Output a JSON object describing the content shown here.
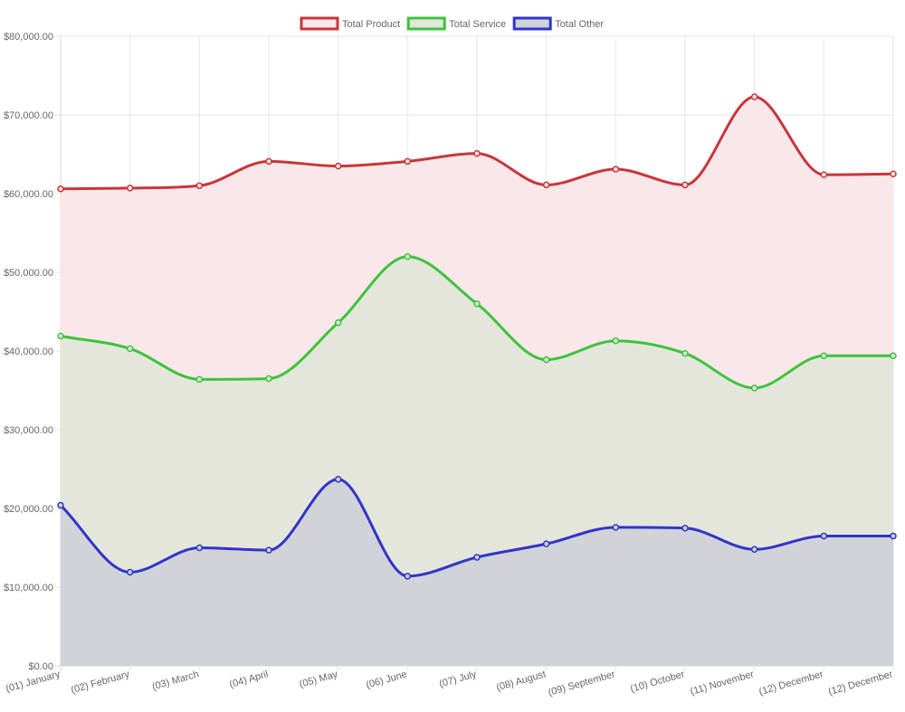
{
  "chart_data": {
    "type": "area",
    "categories": [
      "(01) January",
      "(02) February",
      "(03) March",
      "(04) April",
      "(05) May",
      "(06) June",
      "(07) July",
      "(08) August",
      "(09) September",
      "(10) October",
      "(11) November",
      "(12) December",
      "(12) December"
    ],
    "series": [
      {
        "name": "Total Product",
        "color": "#c8363a",
        "fill": "#f9e7e9",
        "values": [
          60600,
          60700,
          61000,
          64100,
          63500,
          64100,
          65100,
          61100,
          63100,
          61100,
          72300,
          62400,
          62500
        ]
      },
      {
        "name": "Total Service",
        "color": "#3bc43b",
        "fill": "#e5e6db",
        "values": [
          41900,
          40300,
          36400,
          36500,
          43600,
          52000,
          46000,
          38900,
          41300,
          39700,
          35300,
          39400,
          39400
        ]
      },
      {
        "name": "Total Other",
        "color": "#2f35c8",
        "fill": "#d2d3d8",
        "values": [
          20400,
          11900,
          15000,
          14700,
          23700,
          11400,
          13800,
          15500,
          17600,
          17500,
          14800,
          16500,
          16500
        ]
      }
    ],
    "y_ticks": [
      "$0.00",
      "$10,000.00",
      "$20,000.00",
      "$30,000.00",
      "$40,000.00",
      "$50,000.00",
      "$60,000.00",
      "$70,000.00",
      "$80,000.00"
    ],
    "ylim": [
      0,
      80000
    ],
    "title": "",
    "xlabel": "",
    "ylabel": "",
    "legend_position": "top-center",
    "grid": true
  }
}
